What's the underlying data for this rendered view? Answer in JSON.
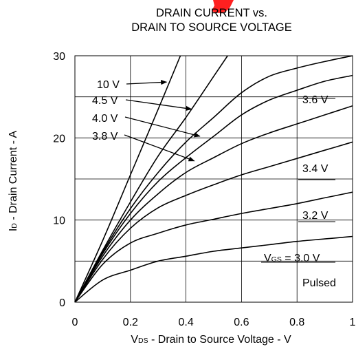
{
  "chart_data": {
    "type": "line",
    "title": "DRAIN CURRENT vs.",
    "subtitle": "DRAIN TO SOURCE VOLTAGE",
    "xlabel": {
      "main": "V",
      "sub": "DS",
      "rest": " - Drain to Source Voltage - V"
    },
    "ylabel": {
      "main": "I",
      "sub": "D",
      "rest": " - Drain Current - A"
    },
    "xlim": [
      0,
      1
    ],
    "ylim": [
      0,
      30
    ],
    "x_ticks": [
      0,
      0.2,
      0.4,
      0.6,
      0.8,
      1
    ],
    "x_tick_labels": [
      "0",
      "0.2",
      "0.4",
      "0.6",
      "0.8",
      "1"
    ],
    "y_ticks": [
      0,
      10,
      20,
      30
    ],
    "y_tick_labels": [
      "0",
      "10",
      "20",
      "30"
    ],
    "x_grid": [
      0.2,
      0.4,
      0.6,
      0.8
    ],
    "y_grid": [
      5,
      10,
      15,
      20,
      25
    ],
    "grid": true,
    "note": "Pulsed",
    "series": [
      {
        "name": "10 V",
        "x": [
          0,
          0.1,
          0.2,
          0.3,
          0.38
        ],
        "y": [
          0,
          7.5,
          15.5,
          23.5,
          30
        ]
      },
      {
        "name": "4.5 V",
        "x": [
          0,
          0.1,
          0.2,
          0.3,
          0.4,
          0.5,
          0.55
        ],
        "y": [
          0,
          6.3,
          12.2,
          17.8,
          22.5,
          27.5,
          30
        ]
      },
      {
        "name": "4.0 V",
        "x": [
          0,
          0.1,
          0.2,
          0.3,
          0.4,
          0.5,
          0.6,
          0.7,
          0.8,
          0.9,
          1.0
        ],
        "y": [
          0,
          6.1,
          11.4,
          15.8,
          19.5,
          22.5,
          25.5,
          27.5,
          28.5,
          29.3,
          30
        ]
      },
      {
        "name": "3.8 V",
        "x": [
          0,
          0.1,
          0.2,
          0.3,
          0.4,
          0.5,
          0.6,
          0.7,
          0.8,
          0.9,
          1.0
        ],
        "y": [
          0,
          5.9,
          10.8,
          14.7,
          17.6,
          20.2,
          22.8,
          24.6,
          25.8,
          26.9,
          27.6
        ]
      },
      {
        "name": "3.6 V",
        "x": [
          0,
          0.1,
          0.2,
          0.3,
          0.4,
          0.5,
          0.6,
          0.7,
          0.8,
          0.9,
          1.0
        ],
        "y": [
          0,
          5.6,
          10.0,
          13.2,
          15.8,
          17.6,
          19.3,
          20.6,
          21.7,
          22.8,
          23.9
        ]
      },
      {
        "name": "3.4 V",
        "x": [
          0,
          0.1,
          0.2,
          0.3,
          0.4,
          0.5,
          0.6,
          0.7,
          0.8,
          0.9,
          1.0
        ],
        "y": [
          0,
          5.2,
          9.0,
          11.5,
          13.0,
          14.3,
          15.5,
          16.5,
          17.5,
          18.5,
          19.5
        ]
      },
      {
        "name": "3.2 V",
        "x": [
          0,
          0.1,
          0.2,
          0.3,
          0.4,
          0.5,
          0.6,
          0.7,
          0.8,
          0.9,
          1.0
        ],
        "y": [
          0,
          4.6,
          7.2,
          8.4,
          9.4,
          10.1,
          10.8,
          11.4,
          12.0,
          12.7,
          13.4
        ]
      },
      {
        "name": "3.0 V",
        "x": [
          0,
          0.1,
          0.2,
          0.3,
          0.4,
          0.5,
          0.6,
          0.7,
          0.8,
          0.9,
          1.0
        ],
        "y": [
          0,
          2.7,
          3.9,
          5.0,
          5.6,
          6.2,
          6.6,
          7.0,
          7.4,
          7.7,
          8.0
        ]
      }
    ],
    "curve_labels": [
      {
        "text": "10 V",
        "series": "10 V",
        "x": 0.33,
        "y": 26.8
      },
      {
        "text": "4.5 V",
        "series": "4.5 V",
        "x": 0.42,
        "y": 23.5
      },
      {
        "text": "4.0 V",
        "series": "4.0 V",
        "x": 0.45,
        "y": 20.2
      },
      {
        "text": "3.8 V",
        "series": "3.8 V",
        "x": 0.43,
        "y": 17.2
      },
      {
        "text": "3.6 V",
        "series": "3.6 V"
      },
      {
        "text": "3.4 V",
        "series": "3.4 V"
      },
      {
        "text": "3.2 V",
        "series": "3.2 V"
      },
      {
        "text": "V_GS = 3.0 V",
        "series": "3.0 V"
      }
    ],
    "vgs_label": {
      "main": "V",
      "sub": "GS",
      "rest": " = 3.0 V"
    },
    "colors": {
      "curve": "#000000",
      "grid": "#000000",
      "watermark": "#ff0000"
    }
  }
}
